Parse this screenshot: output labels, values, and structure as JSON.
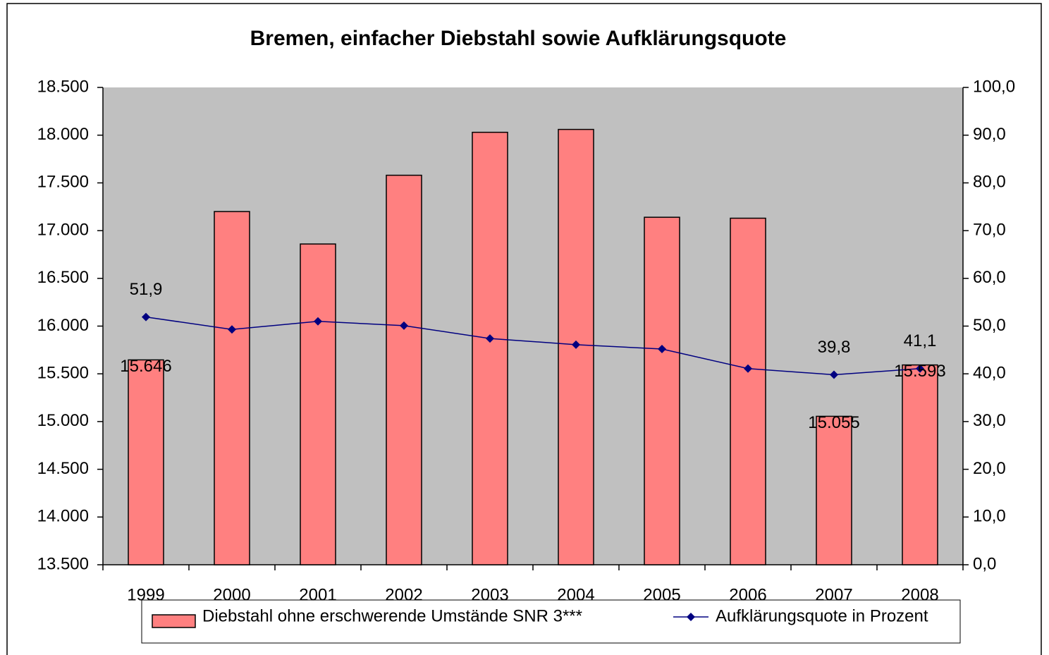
{
  "chart_data": {
    "type": "bar",
    "title": "Bremen, einfacher Diebstahl sowie Aufklärungsquote",
    "categories": [
      "1999",
      "2000",
      "2001",
      "2002",
      "2003",
      "2004",
      "2005",
      "2006",
      "2007",
      "2008"
    ],
    "series": [
      {
        "name": "Diebstahl ohne erschwerende Umstände SNR 3***",
        "type": "bar",
        "color": "#ff8080",
        "values": [
          15646,
          17200,
          16860,
          17580,
          18030,
          18060,
          17140,
          17130,
          15055,
          15593
        ],
        "value_labels": [
          "15.646",
          null,
          null,
          null,
          null,
          null,
          null,
          null,
          "15.055",
          "15.593"
        ]
      },
      {
        "name": "Aufklärungsquote in Prozent",
        "type": "line",
        "axis": "y2",
        "color": "#000080",
        "values": [
          51.9,
          49.3,
          51.0,
          50.1,
          47.4,
          46.1,
          45.2,
          41.1,
          39.8,
          41.1
        ],
        "value_labels": [
          "51,9",
          null,
          null,
          null,
          null,
          null,
          null,
          null,
          "39,8",
          "41,1"
        ]
      }
    ],
    "ylim": [
      13500,
      18500
    ],
    "yticks": [
      {
        "value": 13500,
        "label": "13.500"
      },
      {
        "value": 14000,
        "label": "14.000"
      },
      {
        "value": 14500,
        "label": "14.500"
      },
      {
        "value": 15000,
        "label": "15.000"
      },
      {
        "value": 15500,
        "label": "15.500"
      },
      {
        "value": 16000,
        "label": "16.000"
      },
      {
        "value": 16500,
        "label": "16.500"
      },
      {
        "value": 17000,
        "label": "17.000"
      },
      {
        "value": 17500,
        "label": "17.500"
      },
      {
        "value": 18000,
        "label": "18.000"
      },
      {
        "value": 18500,
        "label": "18.500"
      }
    ],
    "y2lim": [
      0,
      100
    ],
    "y2ticks": [
      {
        "value": 0,
        "label": "0,0"
      },
      {
        "value": 10,
        "label": "10,0"
      },
      {
        "value": 20,
        "label": "20,0"
      },
      {
        "value": 30,
        "label": "30,0"
      },
      {
        "value": 40,
        "label": "40,0"
      },
      {
        "value": 50,
        "label": "50,0"
      },
      {
        "value": 60,
        "label": "60,0"
      },
      {
        "value": 70,
        "label": "70,0"
      },
      {
        "value": 80,
        "label": "80,0"
      },
      {
        "value": 90,
        "label": "90,0"
      },
      {
        "value": 100,
        "label": "100,0"
      }
    ],
    "grid": false,
    "legend": "bottom"
  }
}
